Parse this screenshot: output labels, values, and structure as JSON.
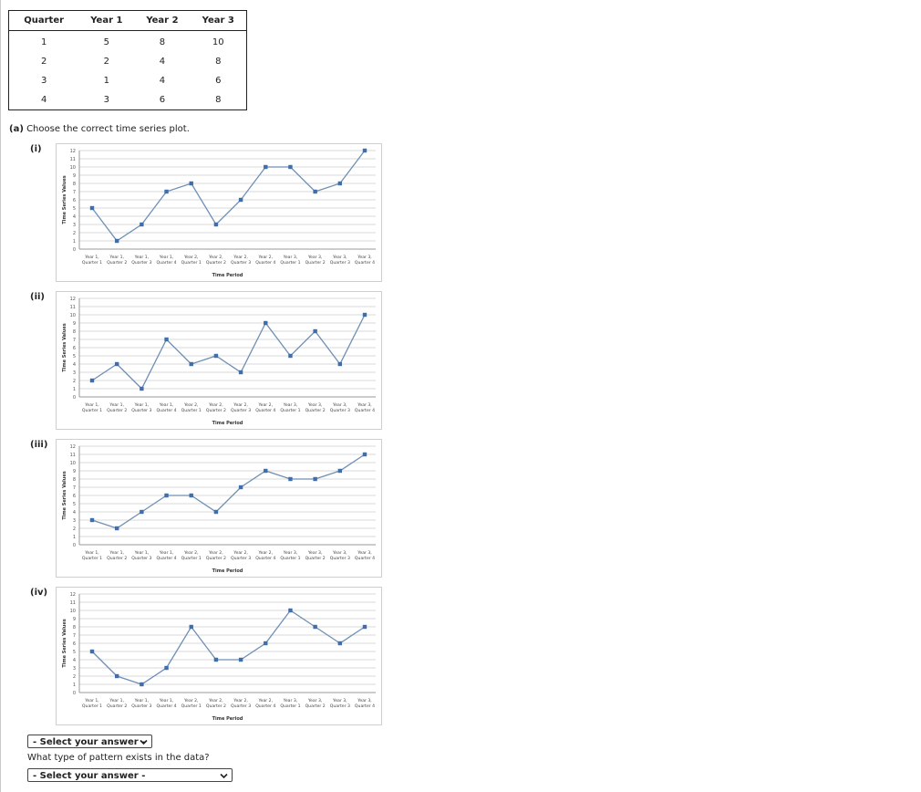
{
  "table": {
    "headers": [
      "Quarter",
      "Year 1",
      "Year 2",
      "Year 3"
    ],
    "rows": [
      [
        "1",
        "5",
        "8",
        "10"
      ],
      [
        "2",
        "2",
        "4",
        "8"
      ],
      [
        "3",
        "1",
        "4",
        "6"
      ],
      [
        "4",
        "3",
        "6",
        "8"
      ]
    ]
  },
  "question_a": {
    "part": "(a)",
    "text": "Choose the correct time series plot."
  },
  "options": [
    "(i)",
    "(ii)",
    "(iii)",
    "(iv)"
  ],
  "chart_data": [
    {
      "type": "line",
      "option": "(i)",
      "xlabel": "Time Period",
      "ylabel": "Time Series Values",
      "ylim": [
        0,
        12
      ],
      "yticks": [
        0,
        1,
        2,
        3,
        4,
        5,
        6,
        7,
        8,
        9,
        10,
        11,
        12
      ],
      "categories": [
        "Year 1, Quarter 1",
        "Year 1, Quarter 2",
        "Year 1, Quarter 3",
        "Year 1, Quarter 4",
        "Year 2, Quarter 1",
        "Year 2, Quarter 2",
        "Year 2, Quarter 3",
        "Year 2, Quarter 4",
        "Year 3, Quarter 1",
        "Year 3, Quarter 2",
        "Year 3, Quarter 3",
        "Year 3, Quarter 4"
      ],
      "values": [
        5,
        1,
        3,
        7,
        8,
        3,
        6,
        10,
        10,
        7,
        8,
        12
      ],
      "color": "#6f8fb3",
      "marker_color": "#3f6eaa",
      "grid": true
    },
    {
      "type": "line",
      "option": "(ii)",
      "xlabel": "Time Period",
      "ylabel": "Time Series Values",
      "ylim": [
        0,
        12
      ],
      "yticks": [
        0,
        1,
        2,
        3,
        4,
        5,
        6,
        7,
        8,
        9,
        10,
        11,
        12
      ],
      "categories": [
        "Year 1, Quarter 1",
        "Year 1, Quarter 2",
        "Year 1, Quarter 3",
        "Year 1, Quarter 4",
        "Year 2, Quarter 1",
        "Year 2, Quarter 2",
        "Year 2, Quarter 3",
        "Year 2, Quarter 4",
        "Year 3, Quarter 1",
        "Year 3, Quarter 2",
        "Year 3, Quarter 3",
        "Year 3, Quarter 4"
      ],
      "values": [
        2,
        4,
        1,
        7,
        4,
        5,
        3,
        9,
        5,
        8,
        4,
        10
      ],
      "color": "#6f8fb3",
      "marker_color": "#3f6eaa",
      "grid": true
    },
    {
      "type": "line",
      "option": "(iii)",
      "xlabel": "Time Period",
      "ylabel": "Time Series Values",
      "ylim": [
        0,
        12
      ],
      "yticks": [
        0,
        1,
        2,
        3,
        4,
        5,
        6,
        7,
        8,
        9,
        10,
        11,
        12
      ],
      "categories": [
        "Year 1, Quarter 1",
        "Year 1, Quarter 2",
        "Year 1, Quarter 3",
        "Year 1, Quarter 4",
        "Year 2, Quarter 1",
        "Year 2, Quarter 2",
        "Year 2, Quarter 3",
        "Year 2, Quarter 4",
        "Year 3, Quarter 1",
        "Year 3, Quarter 2",
        "Year 3, Quarter 3",
        "Year 3, Quarter 4"
      ],
      "values": [
        3,
        2,
        4,
        6,
        6,
        4,
        7,
        9,
        8,
        8,
        9,
        11
      ],
      "color": "#6f8fb3",
      "marker_color": "#3f6eaa",
      "grid": true
    },
    {
      "type": "line",
      "option": "(iv)",
      "xlabel": "Time Period",
      "ylabel": "Time Series Values",
      "ylim": [
        0,
        12
      ],
      "yticks": [
        0,
        1,
        2,
        3,
        4,
        5,
        6,
        7,
        8,
        9,
        10,
        11,
        12
      ],
      "categories": [
        "Year 1, Quarter 1",
        "Year 1, Quarter 2",
        "Year 1, Quarter 3",
        "Year 1, Quarter 4",
        "Year 2, Quarter 1",
        "Year 2, Quarter 2",
        "Year 2, Quarter 3",
        "Year 2, Quarter 4",
        "Year 3, Quarter 1",
        "Year 3, Quarter 2",
        "Year 3, Quarter 3",
        "Year 3, Quarter 4"
      ],
      "values": [
        5,
        2,
        1,
        3,
        8,
        4,
        4,
        6,
        10,
        8,
        6,
        8
      ],
      "color": "#6f8fb3",
      "marker_color": "#3f6eaa",
      "grid": true
    }
  ],
  "answer_select": {
    "value": "- Select your answer -"
  },
  "pattern_question": {
    "text": "What type of pattern exists in the data?"
  },
  "pattern_select": {
    "value": "- Select your answer -"
  }
}
